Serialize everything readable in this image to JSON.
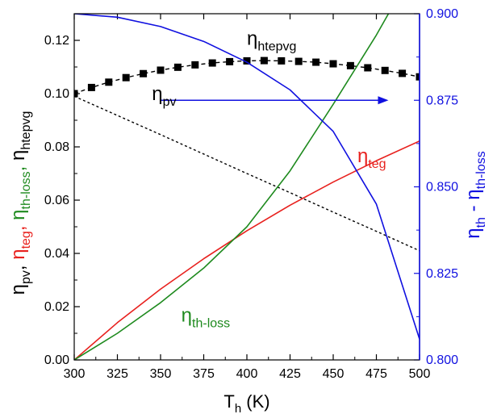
{
  "chart_data": {
    "type": "line",
    "x_axis": {
      "label_main": "T",
      "label_sub": "h",
      "label_unit": " (K)",
      "range": [
        300,
        500
      ],
      "ticks": [
        300,
        325,
        350,
        375,
        400,
        425,
        450,
        475,
        500
      ]
    },
    "y_axis_left": {
      "range": [
        0.0,
        0.13
      ],
      "ticks": [
        0.0,
        0.02,
        0.04,
        0.06,
        0.08,
        0.1,
        0.12
      ],
      "tick_labels": [
        "0.00",
        "0.02",
        "0.04",
        "0.06",
        "0.08",
        "0.10",
        "0.12"
      ],
      "label_parts": [
        {
          "text": "η",
          "sub": "pv",
          "color": "#000000",
          "sep": ", "
        },
        {
          "text": "η",
          "sub": "teg",
          "color": "#e8211e",
          "sep": ", "
        },
        {
          "text": "η",
          "sub": "th-loss",
          "color": "#1e8a1e",
          "sep": ", "
        },
        {
          "text": "η",
          "sub": "htepvg",
          "color": "#000000",
          "sep": ""
        }
      ]
    },
    "y_axis_right": {
      "range": [
        0.8,
        0.9
      ],
      "ticks": [
        0.8,
        0.825,
        0.85,
        0.875,
        0.9
      ],
      "tick_labels": [
        "0.800",
        "0.825",
        "0.850",
        "0.875",
        "0.900"
      ],
      "label_main": "η",
      "label_sub1": "th",
      "label_mid": " - η",
      "label_sub2": "th-loss",
      "color": "#1010e0"
    },
    "series": [
      {
        "id": "htepvg",
        "axis": "left",
        "color": "#000000",
        "style": "dash-square-markers",
        "label": {
          "main": "η",
          "sub": "htepvg"
        },
        "x": [
          300,
          310,
          320,
          330,
          340,
          350,
          360,
          370,
          380,
          390,
          400,
          410,
          420,
          430,
          440,
          450,
          460,
          470,
          480,
          490,
          500
        ],
        "y": [
          0.1,
          0.1023,
          0.1043,
          0.106,
          0.1075,
          0.1088,
          0.1099,
          0.1108,
          0.1115,
          0.112,
          0.1123,
          0.1124,
          0.1123,
          0.1121,
          0.1118,
          0.1112,
          0.1105,
          0.1097,
          0.1087,
          0.1076,
          0.1063
        ]
      },
      {
        "id": "pv",
        "axis": "left",
        "color": "#000000",
        "style": "dotted",
        "label": {
          "main": "η",
          "sub": "pv"
        },
        "x": [
          300,
          325,
          350,
          375,
          400,
          425,
          450,
          475,
          500
        ],
        "y": [
          0.099,
          0.0918,
          0.0846,
          0.0773,
          0.07,
          0.0628,
          0.0555,
          0.0483,
          0.041
        ]
      },
      {
        "id": "teg",
        "axis": "left",
        "color": "#e8211e",
        "style": "solid",
        "label": {
          "main": "η",
          "sub": "teg"
        },
        "x": [
          300,
          325,
          350,
          375,
          400,
          425,
          450,
          475,
          500
        ],
        "y": [
          0.0,
          0.014,
          0.0266,
          0.038,
          0.0485,
          0.0581,
          0.0668,
          0.0748,
          0.0822
        ]
      },
      {
        "id": "th_loss",
        "axis": "left",
        "color": "#1e8a1e",
        "style": "solid",
        "label": {
          "main": "η",
          "sub": "th-loss"
        },
        "x": [
          300,
          325,
          350,
          375,
          400,
          425,
          450,
          475,
          482
        ],
        "y": [
          0.0,
          0.01,
          0.0215,
          0.0345,
          0.05,
          0.071,
          0.096,
          0.122,
          0.13
        ]
      },
      {
        "id": "th_minus_loss",
        "axis": "right",
        "color": "#1010e0",
        "style": "solid",
        "label": null,
        "x": [
          300,
          325,
          350,
          375,
          400,
          425,
          450,
          475,
          500
        ],
        "y": [
          0.9,
          0.899,
          0.8963,
          0.892,
          0.886,
          0.878,
          0.866,
          0.845,
          0.806
        ]
      }
    ],
    "arrow": {
      "from_x": 350,
      "to_x": 482,
      "y_right": 0.875,
      "color": "#1010e0"
    }
  }
}
